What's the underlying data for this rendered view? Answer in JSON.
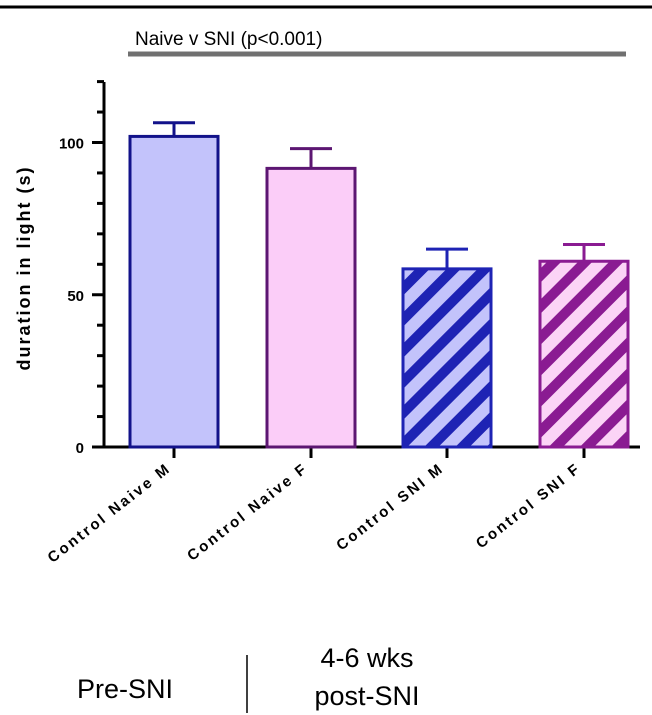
{
  "chart_data": {
    "type": "bar",
    "categories": [
      "Control Naive M",
      "Control Naive F",
      "Control SNI M",
      "Control SNI F"
    ],
    "values": [
      102,
      91.5,
      58.5,
      61
    ],
    "errors": [
      4.5,
      6.5,
      6.5,
      5.5
    ],
    "ylabel": "duration in light (s)",
    "ylim": [
      0,
      120
    ],
    "yticks": [
      0,
      50,
      100
    ],
    "bar_styles": [
      {
        "fill": "#c3c3fb",
        "stroke": "#12128a",
        "hatch": false
      },
      {
        "fill": "#fbcdf8",
        "stroke": "#5c1672",
        "hatch": false
      },
      {
        "fill": "#c3c3fb",
        "stroke": "#1e23b4",
        "hatch": true
      },
      {
        "fill": "#fbd4f6",
        "stroke": "#8a1b92",
        "hatch": true
      }
    ],
    "significance": {
      "label": "Naive v SNI (p<0.001)",
      "line_color": "#707070"
    },
    "groups": [
      {
        "label": "Pre-SNI"
      },
      {
        "label_line1": "4-6 wks",
        "label_line2": "post-SNI"
      }
    ]
  }
}
